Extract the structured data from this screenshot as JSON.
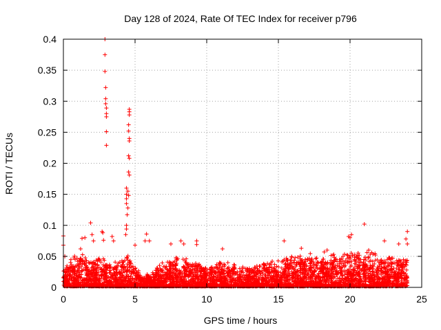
{
  "chart_data": {
    "type": "scatter",
    "title": "Day 128 of 2024, Rate Of TEC Index for receiver p796",
    "xlabel": "GPS time / hours",
    "ylabel": "ROTI / TECUs",
    "xlim": [
      0,
      25
    ],
    "ylim": [
      0,
      0.4
    ],
    "xticks": [
      0,
      5,
      10,
      15,
      20,
      25
    ],
    "xtick_labels": [
      "0",
      "5",
      "10",
      "15",
      "20",
      "25"
    ],
    "yticks": [
      0,
      0.05,
      0.1,
      0.15,
      0.2,
      0.25,
      0.3,
      0.35,
      0.4
    ],
    "ytick_labels": [
      "0",
      "0.05",
      "0.1",
      "0.15",
      "0.2",
      "0.25",
      "0.3",
      "0.35",
      "0.4"
    ],
    "grid": true,
    "marker": "plus",
    "series": [
      {
        "name": "ROTI",
        "color": "#ff0000",
        "note": "dense background points generated from envelope; notable points listed",
        "envelope": {
          "x_range": [
            0,
            24
          ],
          "typical_max_by_hour": [
            [
              0,
              0.03
            ],
            [
              1,
              0.05
            ],
            [
              1.5,
              0.05
            ],
            [
              2,
              0.04
            ],
            [
              2.5,
              0.045
            ],
            [
              3,
              0.04
            ],
            [
              3.5,
              0.035
            ],
            [
              4,
              0.04
            ],
            [
              4.5,
              0.05
            ],
            [
              5,
              0.03
            ],
            [
              5.5,
              0.02
            ],
            [
              6,
              0.02
            ],
            [
              7,
              0.04
            ],
            [
              8,
              0.045
            ],
            [
              9,
              0.04
            ],
            [
              10,
              0.03
            ],
            [
              11,
              0.04
            ],
            [
              12,
              0.035
            ],
            [
              13,
              0.03
            ],
            [
              14,
              0.035
            ],
            [
              15,
              0.04
            ],
            [
              16,
              0.05
            ],
            [
              17,
              0.05
            ],
            [
              18,
              0.045
            ],
            [
              19,
              0.05
            ],
            [
              20,
              0.05
            ],
            [
              21,
              0.05
            ],
            [
              22,
              0.05
            ],
            [
              23,
              0.045
            ],
            [
              24,
              0.05
            ]
          ]
        },
        "points": [
          [
            0.0,
            0.083
          ],
          [
            0.0,
            0.068
          ],
          [
            0.1,
            0.05
          ],
          [
            0.5,
            0.04
          ],
          [
            1.2,
            0.062
          ],
          [
            1.3,
            0.079
          ],
          [
            1.5,
            0.08
          ],
          [
            1.9,
            0.104
          ],
          [
            2.0,
            0.085
          ],
          [
            2.1,
            0.075
          ],
          [
            2.7,
            0.09
          ],
          [
            2.75,
            0.088
          ],
          [
            2.8,
            0.076
          ],
          [
            2.9,
            0.4
          ],
          [
            2.9,
            0.375
          ],
          [
            2.9,
            0.348
          ],
          [
            2.95,
            0.322
          ],
          [
            2.95,
            0.304
          ],
          [
            2.95,
            0.296
          ],
          [
            3.0,
            0.289
          ],
          [
            3.0,
            0.28
          ],
          [
            3.0,
            0.275
          ],
          [
            3.0,
            0.251
          ],
          [
            3.0,
            0.229
          ],
          [
            3.4,
            0.082
          ],
          [
            3.5,
            0.075
          ],
          [
            4.4,
            0.16
          ],
          [
            4.4,
            0.15
          ],
          [
            4.4,
            0.143
          ],
          [
            4.4,
            0.135
          ],
          [
            4.45,
            0.117
          ],
          [
            4.4,
            0.1
          ],
          [
            4.4,
            0.094
          ],
          [
            4.35,
            0.085
          ],
          [
            4.5,
            0.155
          ],
          [
            4.55,
            0.148
          ],
          [
            4.5,
            0.128
          ],
          [
            4.6,
            0.287
          ],
          [
            4.6,
            0.283
          ],
          [
            4.6,
            0.278
          ],
          [
            4.55,
            0.262
          ],
          [
            4.55,
            0.252
          ],
          [
            4.6,
            0.24
          ],
          [
            4.6,
            0.236
          ],
          [
            4.55,
            0.212
          ],
          [
            4.6,
            0.208
          ],
          [
            4.55,
            0.186
          ],
          [
            4.6,
            0.181
          ],
          [
            5.0,
            0.068
          ],
          [
            5.8,
            0.086
          ],
          [
            5.7,
            0.075
          ],
          [
            6.0,
            0.075
          ],
          [
            7.5,
            0.07
          ],
          [
            8.2,
            0.075
          ],
          [
            8.4,
            0.07
          ],
          [
            9.3,
            0.075
          ],
          [
            9.3,
            0.069
          ],
          [
            11.1,
            0.062
          ],
          [
            15.4,
            0.075
          ],
          [
            16.6,
            0.063
          ],
          [
            18.4,
            0.06
          ],
          [
            18.2,
            0.057
          ],
          [
            19.9,
            0.082
          ],
          [
            20.1,
            0.085
          ],
          [
            20.0,
            0.08
          ],
          [
            21.0,
            0.102
          ],
          [
            21.3,
            0.06
          ],
          [
            22.4,
            0.075
          ],
          [
            23.4,
            0.07
          ],
          [
            24.0,
            0.09
          ],
          [
            23.9,
            0.078
          ],
          [
            24.0,
            0.07
          ]
        ]
      }
    ]
  }
}
